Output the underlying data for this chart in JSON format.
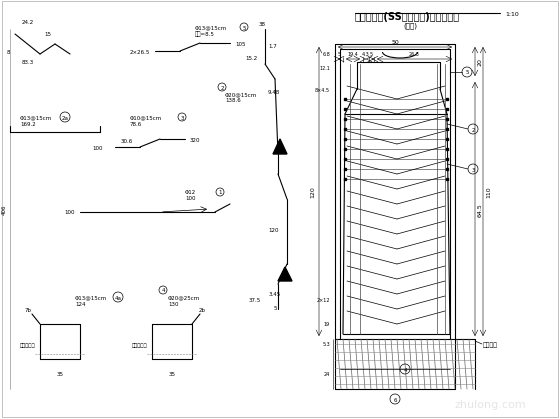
{
  "title": "混凝土护栏(SS级加强型)钢筋构造图",
  "scale": "1:10",
  "subtitle": "(耳墙)",
  "bg_color": "#ffffff",
  "line_color": "#000000",
  "text_color": "#000000",
  "watermark": "zhulong.com",
  "watermark_color": "#cccccc"
}
